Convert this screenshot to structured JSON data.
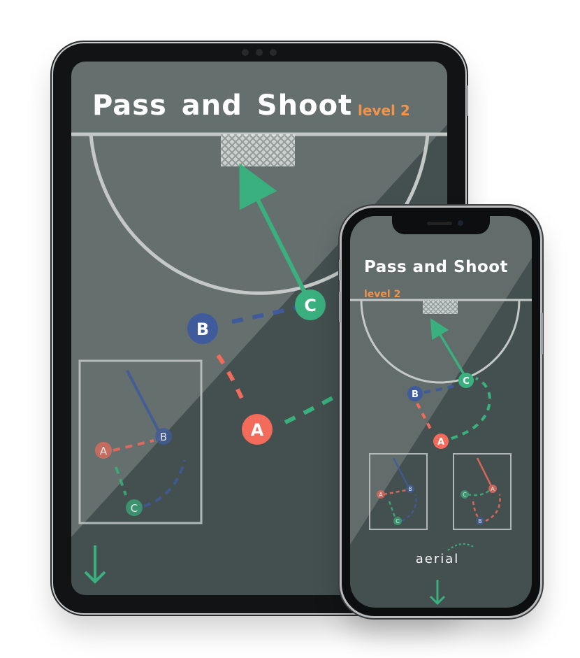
{
  "drill": {
    "title": "Pass and Shoot",
    "level": "level 2",
    "footer_label": "aerial"
  },
  "players": {
    "a": "A",
    "b": "B",
    "c": "C"
  },
  "colors": {
    "background": "#43504f",
    "player_a": "#f26b5b",
    "player_b": "#3f5b9c",
    "player_c": "#3ab07e",
    "level_text": "#f1934a",
    "field_lines": "#c4c9c8"
  },
  "icons": {
    "goal": "goal-net-icon",
    "down": "down-arrow-icon"
  }
}
